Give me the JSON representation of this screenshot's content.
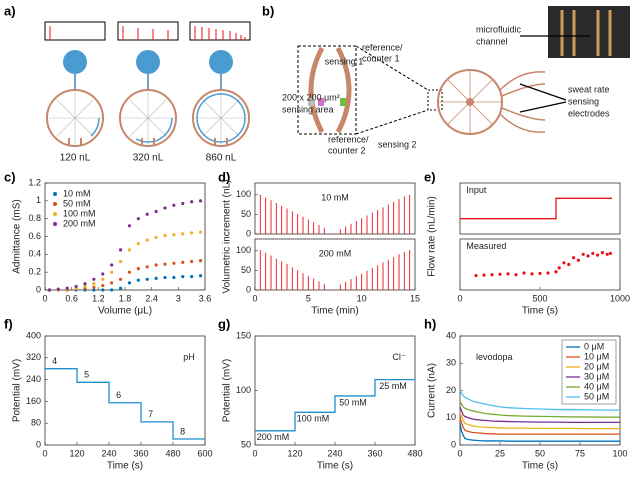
{
  "panel_labels": [
    "a)",
    "b)",
    "c)",
    "d)",
    "e)",
    "f)",
    "g)",
    "h)"
  ],
  "panel_a": {
    "volumes": [
      "120 nL",
      "320 nL",
      "860 nL"
    ]
  },
  "panel_b": {
    "sensing_1": "sensing 1",
    "reference_counter_1": [
      "reference/",
      "counter 1"
    ],
    "sensing_area": [
      "200 x 200 μm²",
      "sensing area"
    ],
    "reference_counter_2": [
      "reference/",
      "counter 2"
    ],
    "sensing_2": "sensing 2",
    "microfluidic_channel": [
      "microfluidic",
      "channel"
    ],
    "sweat_rate": [
      "sweat rate",
      "sensing",
      "electrodes"
    ]
  },
  "chart_data": [
    {
      "type": "scatter",
      "xlabel": "Volume (μL)",
      "ylabel": "Admittance (mS)",
      "xlim": [
        0,
        3.6
      ],
      "xticks": [
        0,
        0.6,
        1.2,
        1.8,
        2.4,
        3,
        3.6
      ],
      "ylim": [
        0,
        1.2
      ],
      "yticks": [
        0,
        0.2,
        0.4,
        0.6,
        0.8,
        1,
        1.2
      ],
      "legend": "upper left",
      "x": [
        0.1,
        0.3,
        0.5,
        0.7,
        0.9,
        1.1,
        1.3,
        1.5,
        1.7,
        1.9,
        2.1,
        2.3,
        2.5,
        2.7,
        2.9,
        3.1,
        3.3,
        3.5
      ],
      "series": [
        {
          "name": "10 mM",
          "color": "#0072bd",
          "values": [
            0,
            0,
            0,
            0,
            0,
            0,
            0,
            0,
            0.02,
            0.08,
            0.11,
            0.12,
            0.13,
            0.14,
            0.14,
            0.15,
            0.15,
            0.16
          ]
        },
        {
          "name": "50 mM",
          "color": "#d95319",
          "values": [
            0,
            0,
            0,
            0.01,
            0.02,
            0.03,
            0.05,
            0.08,
            0.12,
            0.2,
            0.24,
            0.26,
            0.28,
            0.29,
            0.3,
            0.31,
            0.32,
            0.33
          ]
        },
        {
          "name": "100 mM",
          "color": "#edb120",
          "values": [
            0,
            0,
            0.01,
            0.02,
            0.04,
            0.07,
            0.12,
            0.2,
            0.32,
            0.45,
            0.52,
            0.56,
            0.59,
            0.61,
            0.62,
            0.63,
            0.64,
            0.65
          ]
        },
        {
          "name": "200 mM",
          "color": "#7e2f8e",
          "values": [
            0,
            0.01,
            0.02,
            0.04,
            0.07,
            0.12,
            0.18,
            0.28,
            0.45,
            0.72,
            0.8,
            0.85,
            0.88,
            0.92,
            0.95,
            0.97,
            0.99,
            1.0
          ]
        }
      ]
    },
    {
      "type": "stem",
      "annotation": "10 mM",
      "ylabel": "Volumetric increment (nL)",
      "color": "#e8121b",
      "xlim": [
        0,
        15
      ],
      "ylim": [
        0,
        130
      ],
      "yticks": [
        0,
        50,
        100
      ],
      "x": [
        0.5,
        1,
        1.5,
        2,
        2.5,
        3,
        3.5,
        4,
        4.5,
        5,
        5.5,
        6,
        6.5,
        8,
        8.5,
        9,
        9.5,
        10,
        10.5,
        11,
        11.5,
        12,
        12.5,
        13,
        13.5,
        14,
        14.5
      ],
      "values": [
        100,
        93,
        86,
        79,
        72,
        65,
        58,
        51,
        44,
        37,
        30,
        23,
        16,
        12,
        19,
        26,
        33,
        40,
        47,
        54,
        61,
        68,
        75,
        82,
        89,
        96,
        100
      ]
    },
    {
      "type": "stem",
      "annotation": "200 mM",
      "xlabel": "Time (min)",
      "color": "#e8121b",
      "xlim": [
        0,
        15
      ],
      "xticks": [
        0,
        5,
        10,
        15
      ],
      "ylim": [
        0,
        130
      ],
      "yticks": [
        0,
        50,
        100
      ],
      "x": [
        0.5,
        1,
        1.5,
        2,
        2.5,
        3,
        3.5,
        4,
        4.5,
        5,
        5.5,
        6,
        6.5,
        8,
        8.5,
        9,
        9.5,
        10,
        10.5,
        11,
        11.5,
        12,
        12.5,
        13,
        13.5,
        14,
        14.5
      ],
      "values": [
        102,
        95,
        88,
        80,
        73,
        66,
        58,
        50,
        43,
        36,
        29,
        22,
        15,
        14,
        21,
        28,
        35,
        42,
        49,
        56,
        63,
        70,
        77,
        84,
        91,
        97,
        102
      ]
    },
    {
      "type": "line",
      "annotation": "Input",
      "ylabel": "Flow rate (nL/min)",
      "xlim": [
        0,
        1000
      ],
      "ylim": [
        0,
        600
      ],
      "x": [
        0,
        600,
        600,
        950
      ],
      "series": [
        {
          "color": "#e8121b",
          "values": [
            180,
            180,
            420,
            420
          ]
        }
      ]
    },
    {
      "type": "scatter",
      "annotation": "Measured",
      "xlabel": "Time (s)",
      "xlim": [
        0,
        1000
      ],
      "xticks": [
        0,
        500,
        1000
      ],
      "ylim": [
        0,
        600
      ],
      "x": [
        100,
        150,
        200,
        250,
        300,
        350,
        400,
        450,
        500,
        550,
        600,
        620,
        650,
        680,
        710,
        740,
        770,
        800,
        830,
        860,
        890,
        920,
        940
      ],
      "series": [
        {
          "color": "#e8121b",
          "values": [
            170,
            175,
            180,
            185,
            190,
            180,
            200,
            190,
            195,
            200,
            215,
            260,
            320,
            300,
            380,
            350,
            420,
            400,
            430,
            410,
            440,
            420,
            430
          ]
        }
      ]
    },
    {
      "type": "line",
      "annotation": "pH",
      "xlabel": "Time (s)",
      "ylabel": "Potential (mV)",
      "xlim": [
        0,
        600
      ],
      "xticks": [
        0,
        120,
        240,
        360,
        480,
        600
      ],
      "ylim": [
        0,
        400
      ],
      "yticks": [
        0,
        80,
        160,
        240,
        320,
        400
      ],
      "x": [
        0,
        120,
        120,
        240,
        240,
        360,
        360,
        480,
        480,
        600
      ],
      "series": [
        {
          "color": "#1f8fd1",
          "values": [
            280,
            280,
            230,
            230,
            155,
            155,
            85,
            85,
            22,
            22
          ]
        }
      ],
      "step_labels": [
        "4",
        "5",
        "6",
        "7",
        "8"
      ]
    },
    {
      "type": "line",
      "annotation": "Cl⁻",
      "xlabel": "Time (s)",
      "ylabel": "Potential (mV)",
      "xlim": [
        0,
        480
      ],
      "xticks": [
        0,
        120,
        240,
        360,
        480
      ],
      "ylim": [
        50,
        150
      ],
      "yticks": [
        50,
        100,
        150
      ],
      "x": [
        0,
        120,
        120,
        240,
        240,
        360,
        360,
        480
      ],
      "series": [
        {
          "color": "#1f8fd1",
          "values": [
            63,
            63,
            80,
            80,
            95,
            95,
            110,
            110
          ]
        }
      ],
      "step_labels": [
        "200 mM",
        "100 mM",
        "50 mM",
        "25 mM"
      ]
    },
    {
      "type": "line",
      "annotation": "levodopa",
      "xlabel": "Time (s)",
      "ylabel": "Current (nA)",
      "xlim": [
        0,
        100
      ],
      "xticks": [
        0,
        25,
        50,
        75,
        100
      ],
      "ylim": [
        0,
        40
      ],
      "yticks": [
        0,
        10,
        20,
        30,
        40
      ],
      "legend": "upper right",
      "x": [
        0,
        1,
        2,
        3,
        5,
        8,
        12,
        16,
        20,
        25,
        30,
        40,
        50,
        60,
        70,
        80,
        90,
        100
      ],
      "series": [
        {
          "name": "0 μM",
          "color": "#0072bd",
          "values": [
            8,
            5,
            3.5,
            2.5,
            2,
            1.8,
            1.6,
            1.5,
            1.5,
            1.5,
            1.4,
            1.4,
            1.4,
            1.4,
            1.4,
            1.4,
            1.4,
            1.4
          ]
        },
        {
          "name": "10 μM",
          "color": "#d95319",
          "values": [
            10,
            8,
            6.5,
            5.5,
            5,
            4.6,
            4.4,
            4.2,
            4.1,
            4,
            4,
            4,
            4,
            4,
            4,
            4,
            4,
            4
          ]
        },
        {
          "name": "20 μM",
          "color": "#edb120",
          "values": [
            12,
            10.5,
            9,
            8,
            7.5,
            7,
            6.7,
            6.5,
            6.4,
            6.3,
            6.2,
            6.2,
            6.1,
            6.1,
            6.1,
            6,
            6,
            6
          ]
        },
        {
          "name": "30 μM",
          "color": "#7e2f8e",
          "values": [
            14,
            12.5,
            11,
            10.5,
            10,
            9.5,
            9.2,
            9,
            8.8,
            8.7,
            8.6,
            8.5,
            8.4,
            8.4,
            8.3,
            8.3,
            8.3,
            8.3
          ]
        },
        {
          "name": "40 μM",
          "color": "#77ac30",
          "values": [
            16,
            15,
            14,
            13.5,
            13,
            12.5,
            12,
            11.5,
            11.3,
            11,
            10.8,
            10.6,
            10.5,
            10.4,
            10.3,
            10.3,
            10.2,
            10.2
          ]
        },
        {
          "name": "50 μM",
          "color": "#4dbeee",
          "values": [
            20,
            19,
            18,
            17.5,
            17,
            16,
            15.5,
            15,
            14.5,
            14,
            13.7,
            13.4,
            13.2,
            13,
            13,
            12.9,
            12.8,
            12.8
          ]
        }
      ]
    }
  ]
}
